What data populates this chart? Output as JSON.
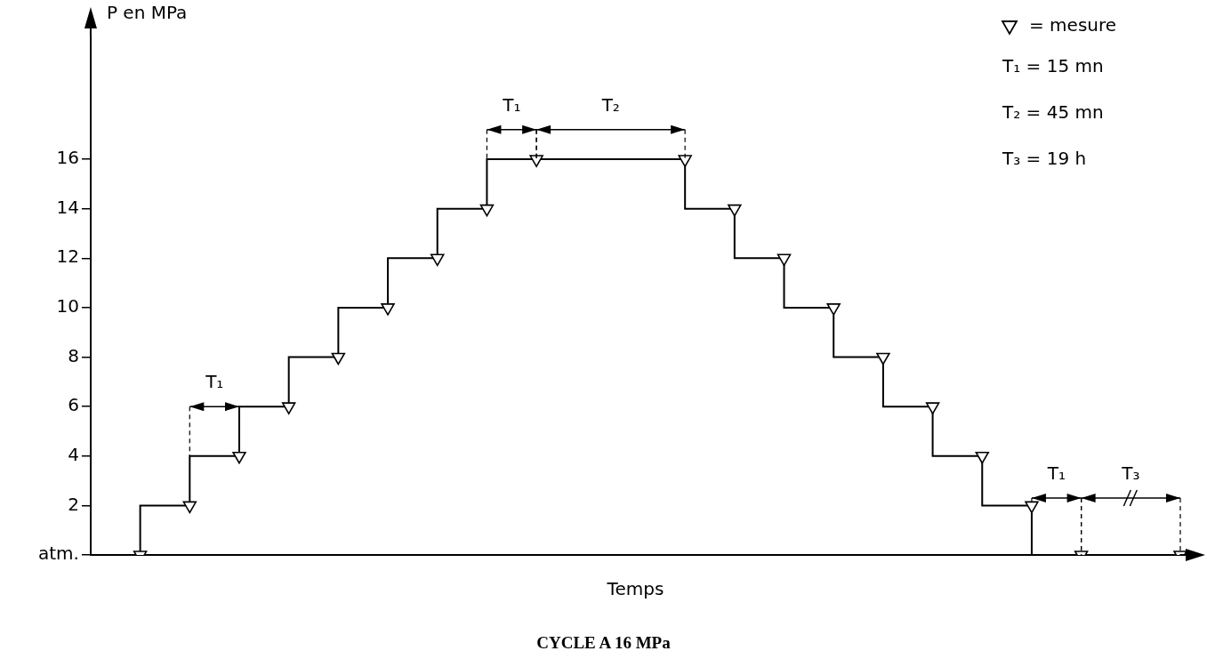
{
  "chart_data": {
    "type": "step",
    "title": "CYCLE A 16 MPa",
    "xlabel": "Temps",
    "ylabel": "P en MPa",
    "categories": [
      null,
      null,
      null,
      null,
      null,
      null,
      null,
      null,
      null,
      null,
      null,
      null,
      null,
      null,
      null,
      null,
      null,
      null,
      null,
      null,
      null,
      null,
      null
    ],
    "series": [
      {
        "color": "#000000",
        "values": [
          0,
          2,
          4,
          6,
          8,
          10,
          12,
          14,
          16,
          16,
          16,
          16,
          14,
          12,
          10,
          8,
          6,
          4,
          2,
          0,
          0,
          0,
          0
        ]
      },
      {
        "type": "scatter",
        "name": "= mesure",
        "color": "#000000",
        "marker": "triangle",
        "values": [
          null,
          0,
          2,
          4,
          6,
          8,
          10,
          12,
          14,
          16,
          null,
          null,
          16,
          14,
          12,
          10,
          8,
          6,
          4,
          2,
          0,
          null,
          0
        ]
      }
    ],
    "ylim": [
      0,
      21
    ],
    "yticks": [
      {
        "value": 0,
        "label": "atm."
      },
      2,
      4,
      6,
      8,
      10,
      12,
      14,
      16
    ],
    "tick_labels": "y",
    "grid": false,
    "legend": "top right",
    "annotations": [
      "T₁",
      "T₁",
      "T₂",
      "T₁",
      "T₃",
      "T₁ = 15 mn",
      "T₂ = 45 mn",
      "T₃ = 19 h"
    ]
  }
}
